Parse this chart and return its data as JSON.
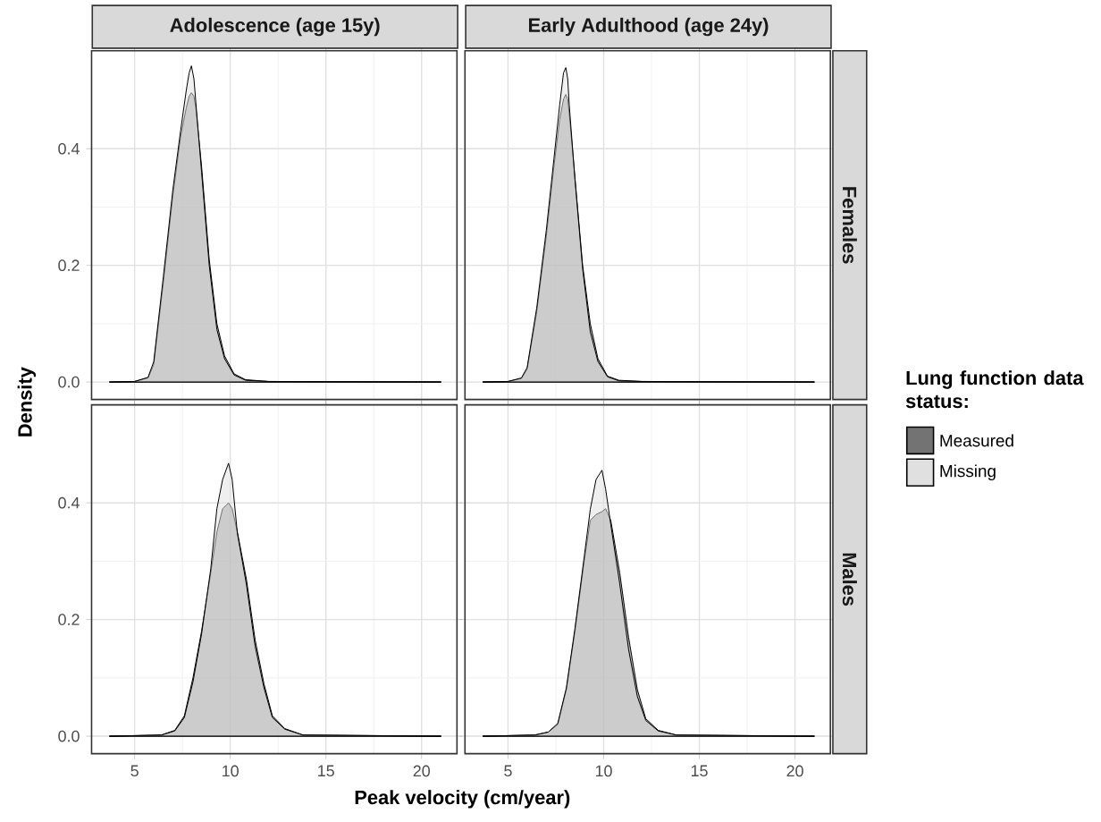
{
  "chart_data": [
    {
      "type": "area",
      "title": "Adolescence (age 15y)",
      "ylabel": "Density",
      "x": [
        3.7,
        5,
        5.7,
        6.0,
        6.5,
        7.0,
        7.4,
        7.7,
        7.85,
        7.97,
        8.1,
        8.2,
        8.5,
        8.9,
        9.3,
        9.7,
        10.2,
        10.8,
        12,
        21
      ],
      "series": [
        {
          "color": "#737373",
          "values": [
            0,
            0.001,
            0.007,
            0.03,
            0.17,
            0.32,
            0.42,
            0.47,
            0.49,
            0.496,
            0.49,
            0.47,
            0.37,
            0.21,
            0.1,
            0.045,
            0.014,
            0.004,
            0.001,
            0
          ]
        },
        {
          "color": "#e0e0e0",
          "values": [
            0,
            0.001,
            0.008,
            0.035,
            0.18,
            0.33,
            0.43,
            0.5,
            0.53,
            0.542,
            0.52,
            0.48,
            0.36,
            0.2,
            0.09,
            0.04,
            0.012,
            0.003,
            0.001,
            0
          ]
        }
      ],
      "xlim": [
        2.75,
        21.85
      ],
      "ylim": [
        -0.03,
        0.568
      ],
      "xticks": [
        5,
        10,
        15,
        20
      ],
      "yticks": [
        {
          "value": 0,
          "label": "0.0"
        },
        0.2,
        0.4
      ],
      "grid": true,
      "tick_labels": "y"
    },
    {
      "type": "area",
      "title": "Early Adulthood (age 24y)",
      "annotations": [
        "Females"
      ],
      "legend_title": "Lung function data status:",
      "legend": "right",
      "x": [
        3.7,
        5,
        5.7,
        6.0,
        6.5,
        7.0,
        7.4,
        7.7,
        7.9,
        8.02,
        8.12,
        8.2,
        8.5,
        8.9,
        9.3,
        9.7,
        10.2,
        10.8,
        12,
        21
      ],
      "series": [
        {
          "name": "Measured",
          "color": "#737373",
          "values": [
            0,
            0.001,
            0.006,
            0.022,
            0.12,
            0.25,
            0.37,
            0.45,
            0.485,
            0.493,
            0.485,
            0.46,
            0.35,
            0.2,
            0.1,
            0.04,
            0.01,
            0.003,
            0.001,
            0
          ]
        },
        {
          "name": "Missing",
          "color": "#e0e0e0",
          "values": [
            0,
            0.001,
            0.007,
            0.025,
            0.127,
            0.26,
            0.383,
            0.475,
            0.53,
            0.539,
            0.52,
            0.475,
            0.347,
            0.194,
            0.086,
            0.035,
            0.009,
            0.002,
            0.001,
            0
          ]
        }
      ],
      "xlim": [
        2.75,
        21.85
      ],
      "ylim": [
        -0.03,
        0.568
      ],
      "xticks": [
        5,
        10,
        15,
        20
      ],
      "yticks": [
        0,
        0.2,
        0.4
      ],
      "grid": true,
      "tick_labels": false
    },
    {
      "type": "area",
      "xlabel": "Peak velocity (cm/year)",
      "x": [
        3.7,
        6.4,
        7.1,
        7.6,
        8.05,
        8.5,
        8.98,
        9.3,
        9.6,
        9.91,
        10.1,
        10.37,
        10.84,
        11.3,
        11.76,
        12.2,
        12.85,
        13.8,
        21
      ],
      "series": [
        {
          "color": "#737373",
          "values": [
            0,
            0.002,
            0.01,
            0.035,
            0.1,
            0.18,
            0.28,
            0.35,
            0.39,
            0.4,
            0.39,
            0.35,
            0.27,
            0.165,
            0.09,
            0.035,
            0.013,
            0.002,
            0
          ]
        },
        {
          "color": "#e0e0e0",
          "values": [
            0,
            0.002,
            0.009,
            0.032,
            0.093,
            0.175,
            0.287,
            0.39,
            0.44,
            0.468,
            0.44,
            0.348,
            0.261,
            0.154,
            0.083,
            0.032,
            0.012,
            0.002,
            0
          ]
        }
      ],
      "xlim": [
        2.75,
        21.85
      ],
      "ylim": [
        -0.03,
        0.568
      ],
      "xticks": [
        5,
        10,
        15,
        20
      ],
      "yticks": [
        {
          "value": 0,
          "label": "0.0"
        },
        0.2,
        0.4
      ],
      "grid": true
    },
    {
      "type": "area",
      "annotations": [
        "Males"
      ],
      "x": [
        3.7,
        6.4,
        7.1,
        7.6,
        8.05,
        8.5,
        8.98,
        9.3,
        9.6,
        9.91,
        10.1,
        10.37,
        10.84,
        11.3,
        11.76,
        12.2,
        12.85,
        13.8,
        21
      ],
      "series": [
        {
          "color": "#737373",
          "values": [
            0,
            0.002,
            0.007,
            0.02,
            0.08,
            0.18,
            0.3,
            0.37,
            0.38,
            0.385,
            0.39,
            0.37,
            0.28,
            0.17,
            0.08,
            0.03,
            0.01,
            0.002,
            0
          ]
        },
        {
          "color": "#e0e0e0",
          "values": [
            0,
            0.002,
            0.007,
            0.022,
            0.083,
            0.185,
            0.307,
            0.389,
            0.44,
            0.456,
            0.424,
            0.363,
            0.261,
            0.149,
            0.068,
            0.027,
            0.009,
            0.002,
            0
          ]
        }
      ],
      "xlim": [
        2.75,
        21.85
      ],
      "ylim": [
        -0.03,
        0.568
      ],
      "xticks": [
        5,
        10,
        15,
        20
      ],
      "yticks": [
        0,
        0.2,
        0.4
      ],
      "grid": true,
      "tick_labels": "x"
    }
  ]
}
